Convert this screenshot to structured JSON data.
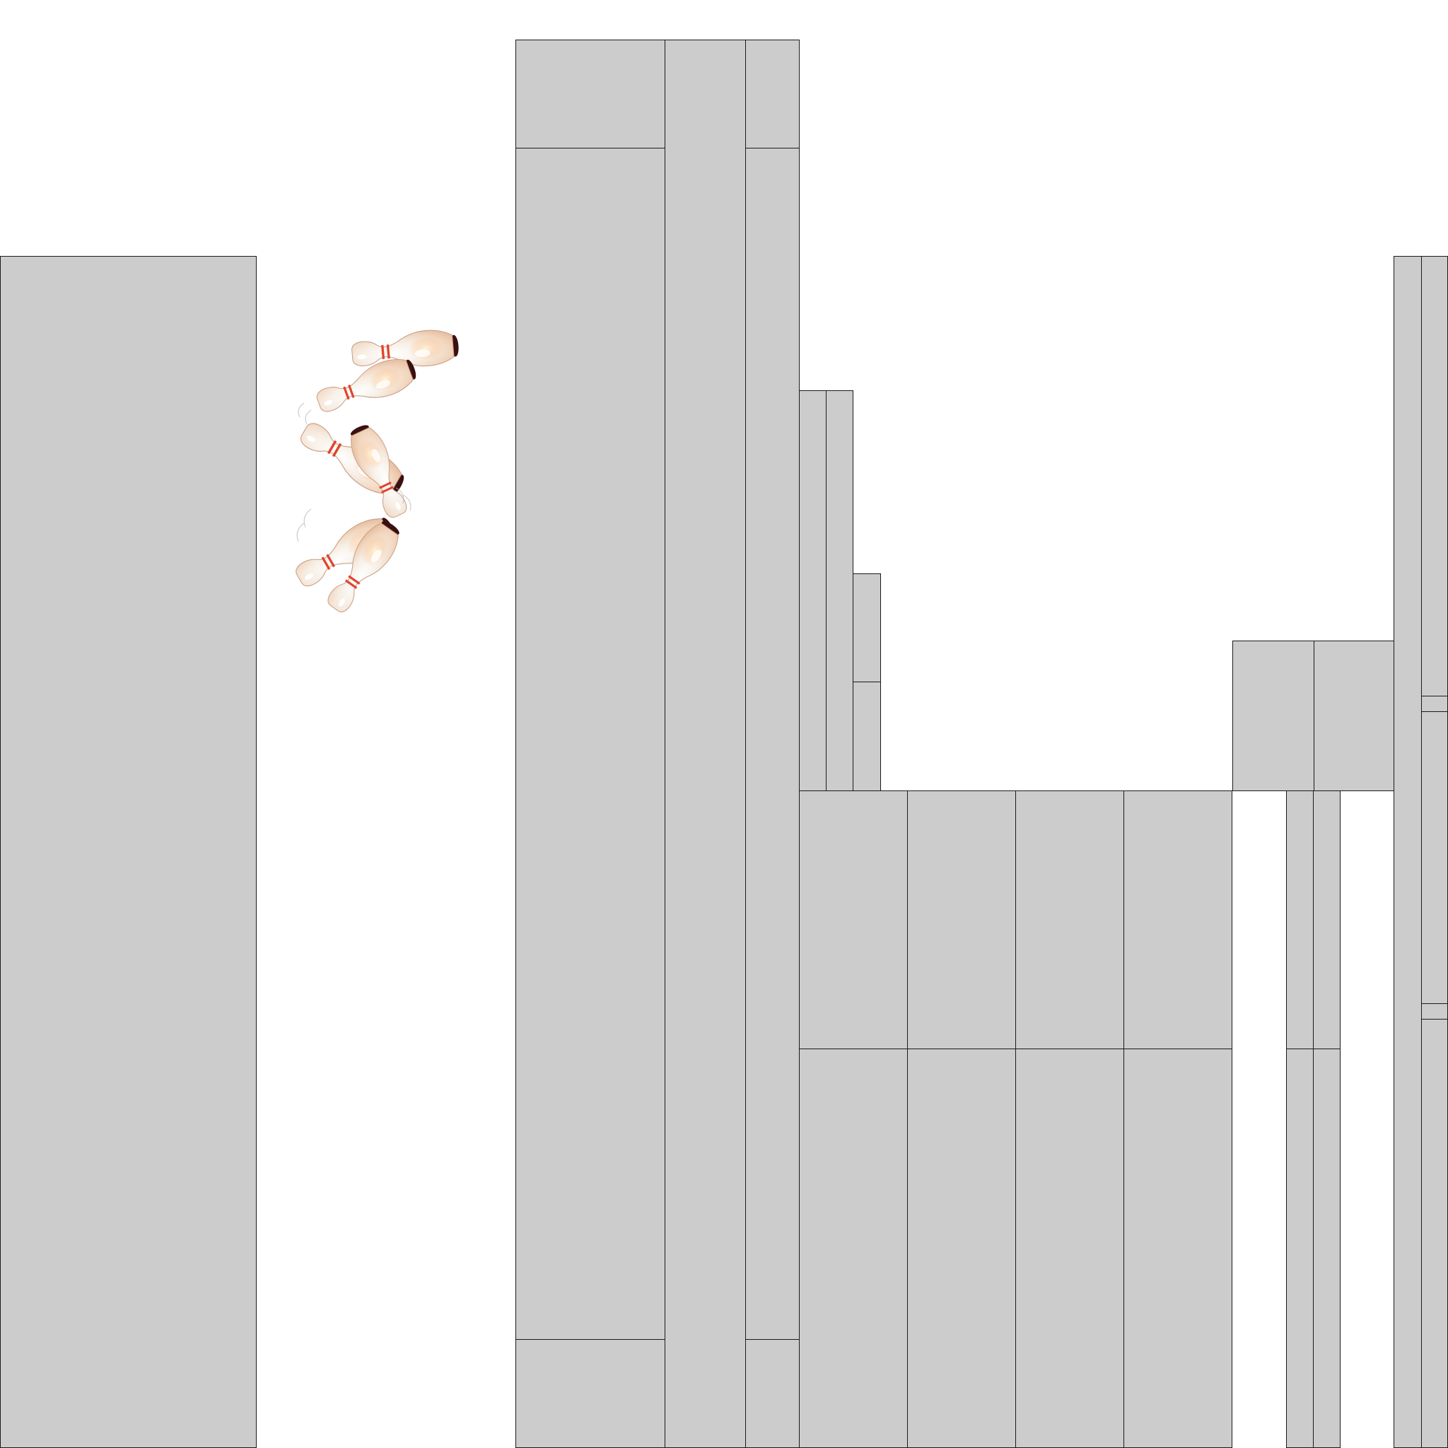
{
  "scene": {
    "background_color": "#ffffff",
    "block_color": "#cccccc",
    "block_outline_color": "#1a1a1a",
    "sprite": "bowling-pins-cluster",
    "pin_count": 6,
    "pin_body_color": "#f4ede6",
    "pin_stripe_color": "#e2432c",
    "pin_base_color": "#3a1010"
  }
}
